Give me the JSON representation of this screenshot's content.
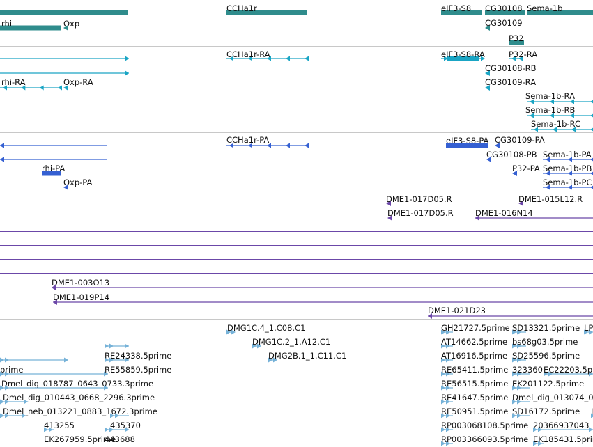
{
  "colors": {
    "gene": "#2f8c8c",
    "transcript": "#1aa5c4",
    "protein": "#3560d2",
    "clone": "#6b47a8",
    "est": "#76b2d8",
    "divider": "#c8c8c8"
  },
  "tracks": [
    {
      "id": "genes",
      "features": [
        {
          "label": "",
          "color": "gene"
        },
        {
          "label": "CCHa1r",
          "color": "gene"
        },
        {
          "label": "eIF3-S8",
          "color": "gene"
        },
        {
          "label": "CG30108",
          "color": "gene"
        },
        {
          "label": "Sema-1b",
          "color": "gene"
        },
        {
          "label": "rhi",
          "color": "gene"
        },
        {
          "label": "Oxp",
          "color": "gene"
        },
        {
          "label": "CG30109",
          "color": "gene"
        },
        {
          "label": "P32",
          "color": "gene"
        }
      ]
    },
    {
      "id": "transcripts",
      "features": [
        {
          "label": "",
          "color": "transcript"
        },
        {
          "label": "",
          "color": "transcript"
        },
        {
          "label": "rhi-RA",
          "color": "transcript"
        },
        {
          "label": "Oxp-RA",
          "color": "transcript"
        },
        {
          "label": "CCHa1r-RA",
          "color": "transcript"
        },
        {
          "label": "eIF3-S8-RA",
          "color": "transcript"
        },
        {
          "label": "P32-RA",
          "color": "transcript"
        },
        {
          "label": "CG30108-RB",
          "color": "transcript"
        },
        {
          "label": "CG30109-RA",
          "color": "transcript"
        },
        {
          "label": "Sema-1b-RA",
          "color": "transcript"
        },
        {
          "label": "Sema-1b-RB",
          "color": "transcript"
        },
        {
          "label": "Sema-1b-RC",
          "color": "transcript"
        }
      ]
    },
    {
      "id": "proteins",
      "features": [
        {
          "label": "",
          "color": "protein"
        },
        {
          "label": "",
          "color": "protein"
        },
        {
          "label": "rhi-PA",
          "color": "protein"
        },
        {
          "label": "Oxp-PA",
          "color": "protein"
        },
        {
          "label": "CCHa1r-PA",
          "color": "protein"
        },
        {
          "label": "eIF3-S8-PA",
          "color": "protein"
        },
        {
          "label": "CG30109-PA",
          "color": "protein"
        },
        {
          "label": "CG30108-PB",
          "color": "protein"
        },
        {
          "label": "P32-PA",
          "color": "protein"
        },
        {
          "label": "Sema-1b-PA",
          "color": "protein"
        },
        {
          "label": "Sema-1b-PB",
          "color": "protein"
        },
        {
          "label": "Sema-1b-PC",
          "color": "protein"
        }
      ]
    },
    {
      "id": "clones",
      "features": [
        {
          "label": "DME1-017D05.R",
          "color": "clone"
        },
        {
          "label": "DME1-017D05.R",
          "color": "clone"
        },
        {
          "label": "DME1-015L12.R",
          "color": "clone"
        },
        {
          "label": "DME1-016N14",
          "color": "clone"
        },
        {
          "label": "DME1-003O13",
          "color": "clone"
        },
        {
          "label": "DME1-019P14",
          "color": "clone"
        },
        {
          "label": "DME1-021D23",
          "color": "clone"
        }
      ]
    },
    {
      "id": "ests",
      "features": [
        {
          "label": "DMG1C.4_1.C08.C1",
          "color": "est"
        },
        {
          "label": "DMG1C.2_1.A12.C1",
          "color": "est"
        },
        {
          "label": "DMG2B.1_1.C11.C1",
          "color": "est"
        },
        {
          "label": "RE24338.5prime",
          "color": "est"
        },
        {
          "label": "RE55859.5prime",
          "color": "est"
        },
        {
          "label": "prime",
          "color": "est"
        },
        {
          "label": "Dmel_dig_018787_0643_0733.3prime",
          "color": "est"
        },
        {
          "label": "Dmel_dig_010443_0668_2296.3prime",
          "color": "est"
        },
        {
          "label": "Dmel_neb_013221_0883_1672.3prime",
          "color": "est"
        },
        {
          "label": "413255",
          "color": "est"
        },
        {
          "label": "435370",
          "color": "est"
        },
        {
          "label": "EK267959.5prime",
          "color": "est"
        },
        {
          "label": "443688",
          "color": "est"
        },
        {
          "label": "GH21727.5prime",
          "color": "est"
        },
        {
          "label": "SD13321.5prime",
          "color": "est"
        },
        {
          "label": "LP",
          "color": "est"
        },
        {
          "label": "AT14662.5prime",
          "color": "est"
        },
        {
          "label": "bs68g03.5prime",
          "color": "est"
        },
        {
          "label": "AT16916.5prime",
          "color": "est"
        },
        {
          "label": "SD25596.5prime",
          "color": "est"
        },
        {
          "label": "RE65411.5prime",
          "color": "est"
        },
        {
          "label": "323360",
          "color": "est"
        },
        {
          "label": "EC22203.5p",
          "color": "est"
        },
        {
          "label": "RE56515.5prime",
          "color": "est"
        },
        {
          "label": "EK201122.5prime",
          "color": "est"
        },
        {
          "label": "RE41647.5prime",
          "color": "est"
        },
        {
          "label": "Dmel_dig_013074_0",
          "color": "est"
        },
        {
          "label": "RE50951.5prime",
          "color": "est"
        },
        {
          "label": "SD16172.5prime",
          "color": "est"
        },
        {
          "label": "RP003068108.5prime",
          "color": "est"
        },
        {
          "label": "20366937043",
          "color": "est"
        },
        {
          "label": "RP003366093.5prime",
          "color": "est"
        },
        {
          "label": "EK185431.5prime",
          "color": "est"
        },
        {
          "label": "I",
          "color": "est"
        }
      ]
    }
  ]
}
